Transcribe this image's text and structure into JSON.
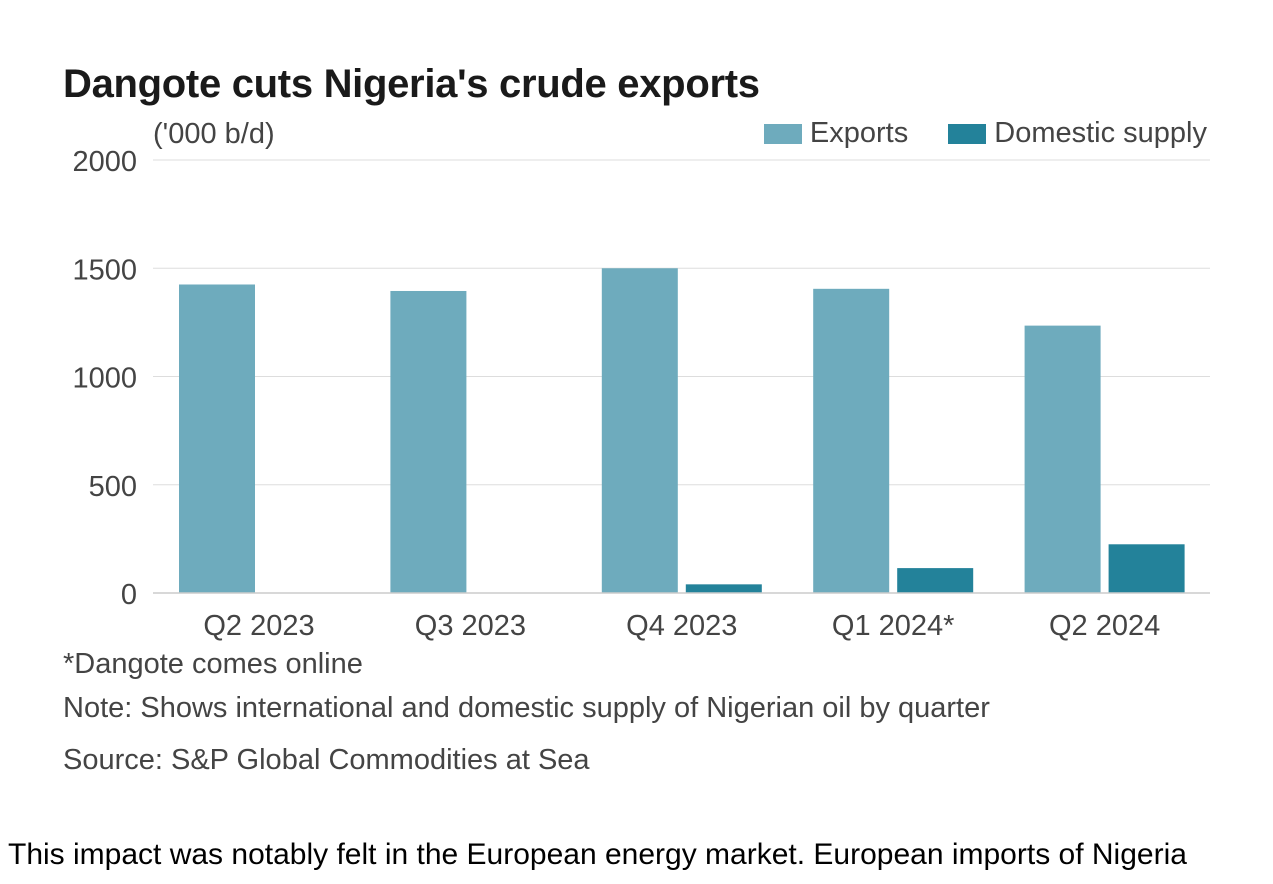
{
  "chart_data": {
    "type": "bar",
    "title": "Dangote cuts Nigeria's crude exports",
    "ylabel": "('000 b/d)",
    "xlabel": "",
    "categories": [
      "Q2 2023",
      "Q3 2023",
      "Q4 2023",
      "Q1 2024*",
      "Q2 2024"
    ],
    "series": [
      {
        "name": "Exports",
        "values": [
          1425,
          1395,
          1500,
          1405,
          1235
        ],
        "color": "#6eabbd"
      },
      {
        "name": "Domestic supply",
        "values": [
          0,
          0,
          40,
          115,
          225
        ],
        "color": "#23829a"
      }
    ],
    "ylim": [
      0,
      2000
    ],
    "yticks": [
      "0",
      "500",
      "1000",
      "1500",
      "2000"
    ],
    "grid": true,
    "legend_position": "top-right"
  },
  "footnotes": {
    "asterisk_note": "*Dangote comes online",
    "note": "Note: Shows international and domestic supply of Nigerian oil by quarter",
    "source": "Source: S&P Global Commodities at Sea"
  },
  "body_text": "This impact was notably felt in the European energy market. European imports of Nigeria"
}
